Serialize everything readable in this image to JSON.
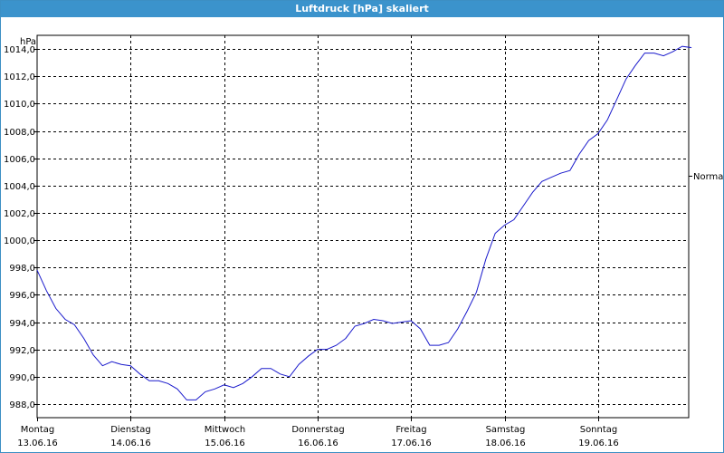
{
  "window": {
    "title": "Luftdruck [hPa] skaliert"
  },
  "chart_data": {
    "type": "line",
    "title": "Luftdruck [hPa] skaliert",
    "ylabel": "hPa",
    "ylim": [
      987.0,
      1015.0
    ],
    "yticks": [
      988.0,
      990.0,
      992.0,
      994.0,
      996.0,
      998.0,
      1000.0,
      1002.0,
      1004.0,
      1006.0,
      1008.0,
      1010.0,
      1012.0,
      1014.0
    ],
    "ytick_labels": [
      "988,0",
      "990,0",
      "992,0",
      "994,0",
      "996,0",
      "998,0",
      "1000,0",
      "1002,0",
      "1004,0",
      "1006,0",
      "1008,0",
      "1010,0",
      "1012,0",
      "1014,0"
    ],
    "xlim": [
      0,
      7.0
    ],
    "xticks": [
      {
        "day": "Montag",
        "date": "13.06.16"
      },
      {
        "day": "Dienstag",
        "date": "14.06.16"
      },
      {
        "day": "Mittwoch",
        "date": "15.06.16"
      },
      {
        "day": "Donnerstag",
        "date": "16.06.16"
      },
      {
        "day": "Freitag",
        "date": "17.06.16"
      },
      {
        "day": "Samstag",
        "date": "18.06.16"
      },
      {
        "day": "Sonntag",
        "date": "19.06.16"
      }
    ],
    "grid": true,
    "reference_marker": {
      "label": "Normal",
      "value": 1004.7
    },
    "series": [
      {
        "color": "#1a1acc",
        "x": [
          0.0,
          0.1,
          0.2,
          0.3,
          0.4,
          0.5,
          0.6,
          0.7,
          0.8,
          0.9,
          1.0,
          1.1,
          1.2,
          1.3,
          1.4,
          1.5,
          1.6,
          1.7,
          1.8,
          1.9,
          2.0,
          2.1,
          2.2,
          2.3,
          2.4,
          2.5,
          2.6,
          2.7,
          2.8,
          2.9,
          3.0,
          3.1,
          3.2,
          3.3,
          3.4,
          3.5,
          3.6,
          3.7,
          3.8,
          3.9,
          4.0,
          4.1,
          4.2,
          4.3,
          4.4,
          4.5,
          4.6,
          4.7,
          4.8,
          4.9,
          5.0,
          5.1,
          5.2,
          5.3,
          5.4,
          5.5,
          5.6,
          5.7,
          5.8,
          5.9,
          6.0,
          6.1,
          6.2,
          6.3,
          6.4,
          6.5,
          6.6,
          6.7,
          6.8,
          6.9,
          7.0
        ],
        "y": [
          997.8,
          996.3,
          995.0,
          994.2,
          993.8,
          992.8,
          991.6,
          990.8,
          991.1,
          990.9,
          990.8,
          990.2,
          989.7,
          989.7,
          989.5,
          989.1,
          988.3,
          988.3,
          988.9,
          989.1,
          989.4,
          989.2,
          989.5,
          990.0,
          990.6,
          990.6,
          990.2,
          990.0,
          990.9,
          991.5,
          992.0,
          992.0,
          992.3,
          992.8,
          993.7,
          993.9,
          994.2,
          994.1,
          993.9,
          994.0,
          994.1,
          993.5,
          992.3,
          992.3,
          992.5,
          993.5,
          994.8,
          996.2,
          998.6,
          1000.5,
          1001.1,
          1001.5,
          1002.5,
          1003.5,
          1004.3,
          1004.6,
          1004.9,
          1005.1,
          1006.3,
          1007.3,
          1007.8,
          1008.8,
          1010.3,
          1011.8,
          1012.8,
          1013.7,
          1013.7,
          1013.5,
          1013.8,
          1014.2,
          1014.1
        ]
      }
    ]
  }
}
